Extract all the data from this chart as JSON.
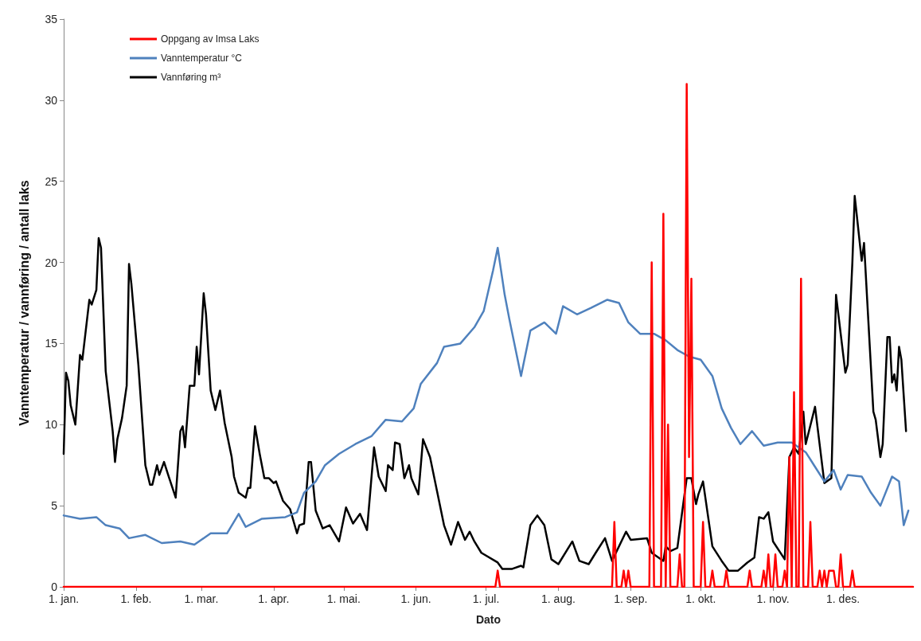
{
  "chart_data": {
    "type": "line",
    "xlabel": "Dato",
    "ylabel": "Vanntemperatur / vannføring / antall laks",
    "xlim": [
      "--01-01",
      "--12-31"
    ],
    "xticks": [
      {
        "value": "--01-01",
        "label": "1. jan."
      },
      {
        "value": "--02-01",
        "label": "1. feb."
      },
      {
        "value": "--03-01",
        "label": "1. mar."
      },
      {
        "value": "--04-01",
        "label": "1. apr."
      },
      {
        "value": "--05-01",
        "label": "1. mai."
      },
      {
        "value": "--06-01",
        "label": "1. jun."
      },
      {
        "value": "--07-01",
        "label": "1. jul."
      },
      {
        "value": "--08-01",
        "label": "1. aug."
      },
      {
        "value": "--09-01",
        "label": "1. sep."
      },
      {
        "value": "--10-01",
        "label": "1. okt."
      },
      {
        "value": "--11-01",
        "label": "1. nov."
      },
      {
        "value": "--12-01",
        "label": "1. des."
      }
    ],
    "ylim": [
      0,
      35
    ],
    "yticks": [
      0,
      5,
      10,
      15,
      20,
      25,
      30,
      35
    ],
    "grid": false,
    "legend": "top left",
    "marker": "none",
    "line_style": "solid",
    "series": [
      {
        "name": "Oppgang av Imsa Laks",
        "color": "#ff0000",
        "x": [
          "--01-01",
          "--07-05",
          "--07-06",
          "--07-07",
          "--08-24",
          "--08-25",
          "--08-26",
          "--08-28",
          "--08-29",
          "--08-30",
          "--08-31",
          "--09-01",
          "--09-09",
          "--09-10",
          "--09-11",
          "--09-14",
          "--09-15",
          "--09-16",
          "--09-17",
          "--09-18",
          "--09-21",
          "--09-22",
          "--09-23",
          "--09-24",
          "--09-25",
          "--09-26",
          "--09-27",
          "--09-28",
          "--10-01",
          "--10-02",
          "--10-03",
          "--10-05",
          "--10-06",
          "--10-07",
          "--10-11",
          "--10-12",
          "--10-13",
          "--10-21",
          "--10-22",
          "--10-23",
          "--10-27",
          "--10-28",
          "--10-29",
          "--10-30",
          "--10-31",
          "--11-01",
          "--11-02",
          "--11-03",
          "--11-05",
          "--11-06",
          "--11-07",
          "--11-08",
          "--11-09",
          "--11-10",
          "--11-11",
          "--11-12",
          "--11-13",
          "--11-14",
          "--11-16",
          "--11-17",
          "--11-18",
          "--11-20",
          "--11-21",
          "--11-22",
          "--11-23",
          "--11-24",
          "--11-25",
          "--11-26",
          "--11-27",
          "--11-28",
          "--11-29",
          "--11-30",
          "--12-01",
          "--12-04",
          "--12-05",
          "--12-06",
          "--12-31"
        ],
        "values": [
          0,
          0,
          1,
          0,
          0,
          4,
          0,
          0,
          1,
          0,
          1,
          0,
          0,
          20,
          0,
          0,
          23,
          0,
          10,
          0,
          0,
          2,
          0,
          0,
          31,
          8,
          19,
          0,
          0,
          4,
          0,
          0,
          1,
          0,
          0,
          1,
          0,
          0,
          1,
          0,
          0,
          1,
          0,
          2,
          0,
          0,
          2,
          0,
          0,
          1,
          0,
          8,
          0,
          12,
          0,
          0,
          19,
          0,
          0,
          4,
          0,
          0,
          1,
          0,
          1,
          0,
          1,
          1,
          1,
          0,
          0,
          2,
          0,
          0,
          1,
          0,
          0
        ]
      },
      {
        "name": "Vanntemperatur °C",
        "color": "#4f81bd",
        "x": [
          "--01-01",
          "--01-08",
          "--01-15",
          "--01-19",
          "--01-25",
          "--01-29",
          "--02-05",
          "--02-12",
          "--02-20",
          "--02-26",
          "--03-05",
          "--03-12",
          "--03-17",
          "--03-20",
          "--03-27",
          "--04-06",
          "--04-11",
          "--04-14",
          "--04-19",
          "--04-23",
          "--04-29",
          "--05-06",
          "--05-13",
          "--05-19",
          "--05-26",
          "--05-31",
          "--06-03",
          "--06-10",
          "--06-13",
          "--06-20",
          "--06-26",
          "--06-30",
          "--07-04",
          "--07-06",
          "--07-09",
          "--07-11",
          "--07-16",
          "--07-20",
          "--07-26",
          "--07-31",
          "--08-03",
          "--08-09",
          "--08-15",
          "--08-22",
          "--08-27",
          "--08-31",
          "--09-05",
          "--09-11",
          "--09-16",
          "--09-21",
          "--09-26",
          "--10-01",
          "--10-06",
          "--10-10",
          "--10-14",
          "--10-18",
          "--10-23",
          "--10-28",
          "--11-03",
          "--11-09",
          "--11-15",
          "--11-19",
          "--11-23",
          "--11-27",
          "--11-30",
          "--12-03",
          "--12-09",
          "--12-13",
          "--12-17",
          "--12-22",
          "--12-25",
          "--12-27",
          "--12-29"
        ],
        "values": [
          4.4,
          4.2,
          4.3,
          3.8,
          3.6,
          3.0,
          3.2,
          2.7,
          2.8,
          2.6,
          3.3,
          3.3,
          4.5,
          3.7,
          4.2,
          4.3,
          4.6,
          5.8,
          6.5,
          7.5,
          8.2,
          8.8,
          9.3,
          10.3,
          10.2,
          11.0,
          12.5,
          13.8,
          14.8,
          15.0,
          16.0,
          17.0,
          19.5,
          20.9,
          18.0,
          16.5,
          13.0,
          15.8,
          16.3,
          15.6,
          17.3,
          16.8,
          17.2,
          17.7,
          17.5,
          16.3,
          15.6,
          15.6,
          15.2,
          14.6,
          14.2,
          14.0,
          13.0,
          11.0,
          9.8,
          8.8,
          9.6,
          8.7,
          8.9,
          8.9,
          8.3,
          7.4,
          6.5,
          7.2,
          6.0,
          6.9,
          6.8,
          5.8,
          5.0,
          6.8,
          6.5,
          3.8,
          4.7
        ]
      },
      {
        "name": "Vannføring m³",
        "color": "#000000",
        "x": [
          "--01-01",
          "--01-02",
          "--01-03",
          "--01-04",
          "--01-06",
          "--01-08",
          "--01-09",
          "--01-12",
          "--01-13",
          "--01-15",
          "--01-16",
          "--01-17",
          "--01-19",
          "--01-22",
          "--01-23",
          "--01-24",
          "--01-26",
          "--01-28",
          "--01-29",
          "--01-30",
          "--02-02",
          "--02-05",
          "--02-07",
          "--02-08",
          "--02-10",
          "--02-11",
          "--02-13",
          "--02-15",
          "--02-18",
          "--02-20",
          "--02-21",
          "--02-22",
          "--02-24",
          "--02-26",
          "--02-27",
          "--02-28",
          "--03-02",
          "--03-03",
          "--03-05",
          "--03-07",
          "--03-09",
          "--03-11",
          "--03-14",
          "--03-15",
          "--03-17",
          "--03-20",
          "--03-21",
          "--03-22",
          "--03-24",
          "--03-26",
          "--03-28",
          "--03-30",
          "--04-01",
          "--04-02",
          "--04-05",
          "--04-08",
          "--04-11",
          "--04-12",
          "--04-14",
          "--04-16",
          "--04-17",
          "--04-19",
          "--04-22",
          "--04-25",
          "--04-29",
          "--05-02",
          "--05-05",
          "--05-08",
          "--05-11",
          "--05-14",
          "--05-16",
          "--05-19",
          "--05-20",
          "--05-22",
          "--05-23",
          "--05-25",
          "--05-27",
          "--05-29",
          "--05-30",
          "--06-02",
          "--06-04",
          "--06-07",
          "--06-10",
          "--06-13",
          "--06-16",
          "--06-19",
          "--06-22",
          "--06-24",
          "--06-26",
          "--06-29",
          "--07-06",
          "--07-08",
          "--07-12",
          "--07-16",
          "--07-17",
          "--07-20",
          "--07-23",
          "--07-26",
          "--07-29",
          "--08-01",
          "--08-07",
          "--08-10",
          "--08-14",
          "--08-17",
          "--08-21",
          "--08-24",
          "--08-30",
          "--09-01",
          "--09-08",
          "--09-10",
          "--09-15",
          "--09-16",
          "--09-18",
          "--09-21",
          "--09-25",
          "--09-27",
          "--09-29",
          "--09-30",
          "--10-02",
          "--10-06",
          "--10-10",
          "--10-13",
          "--10-17",
          "--10-21",
          "--10-24",
          "--10-26",
          "--10-28",
          "--10-30",
          "--11-01",
          "--11-06",
          "--11-08",
          "--11-10",
          "--11-12",
          "--11-14",
          "--11-15",
          "--11-19",
          "--11-23",
          "--11-26",
          "--11-28",
          "--12-02",
          "--12-03",
          "--12-05",
          "--12-06",
          "--12-09",
          "--12-10",
          "--12-14",
          "--12-15",
          "--12-17",
          "--12-18",
          "--12-20",
          "--12-21",
          "--12-22",
          "--12-23",
          "--12-24",
          "--12-25",
          "--12-26",
          "--12-28"
        ],
        "values": [
          8.2,
          13.2,
          12.7,
          11.2,
          10.0,
          14.3,
          14.0,
          17.7,
          17.4,
          18.3,
          21.5,
          20.9,
          13.3,
          9.6,
          7.7,
          9.1,
          10.4,
          12.4,
          19.9,
          18.7,
          13.7,
          7.5,
          6.3,
          6.3,
          7.5,
          6.9,
          7.7,
          6.8,
          5.5,
          9.6,
          9.9,
          8.6,
          12.4,
          12.4,
          14.8,
          13.1,
          18.1,
          16.8,
          12.1,
          10.9,
          12.1,
          10.1,
          8.0,
          6.8,
          5.8,
          5.5,
          6.1,
          6.1,
          9.9,
          8.2,
          6.7,
          6.7,
          6.4,
          6.5,
          5.3,
          4.8,
          3.3,
          3.8,
          3.9,
          7.7,
          7.7,
          4.7,
          3.6,
          3.8,
          2.8,
          4.9,
          3.9,
          4.5,
          3.5,
          8.6,
          6.8,
          5.9,
          7.5,
          7.2,
          8.9,
          8.8,
          6.7,
          7.5,
          6.7,
          5.7,
          9.1,
          8.0,
          5.9,
          3.8,
          2.6,
          4.0,
          2.9,
          3.4,
          2.8,
          2.1,
          1.5,
          1.1,
          1.1,
          1.3,
          1.2,
          3.8,
          4.4,
          3.8,
          1.7,
          1.4,
          2.8,
          1.6,
          1.4,
          2.1,
          3.0,
          1.6,
          3.4,
          2.9,
          3.0,
          2.1,
          1.6,
          2.5,
          2.2,
          2.4,
          6.7,
          6.7,
          5.1,
          5.7,
          6.5,
          2.5,
          1.6,
          1.0,
          1.0,
          1.5,
          1.8,
          4.3,
          4.2,
          4.6,
          2.8,
          1.7,
          8.0,
          8.6,
          8.2,
          10.8,
          8.8,
          11.1,
          6.4,
          6.7,
          18.0,
          13.2,
          13.7,
          20.0,
          24.1,
          20.1,
          21.2,
          10.8,
          10.3,
          8.0,
          8.8,
          15.4,
          15.4,
          12.6,
          13.1,
          12.1,
          14.8,
          14.0,
          9.6
        ]
      }
    ]
  }
}
